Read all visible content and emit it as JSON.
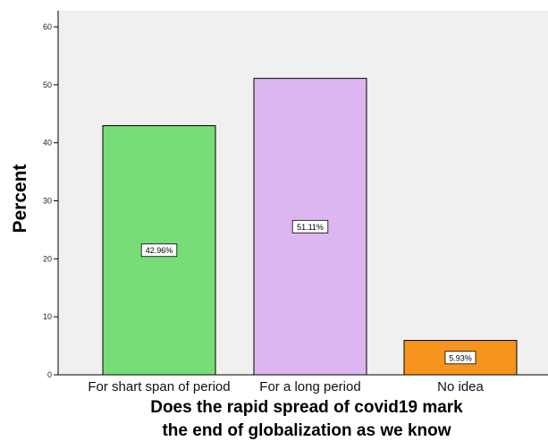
{
  "chart_data": {
    "type": "bar",
    "categories": [
      "For shart span of period",
      "For a long period",
      "No idea"
    ],
    "values": [
      42.96,
      51.11,
      5.93
    ],
    "data_labels": [
      "42.96%",
      "51.11%",
      "5.93%"
    ],
    "colors": [
      "#77dd77",
      "#dcb6f0",
      "#f7941d"
    ],
    "plot_background": "#f0f0f0",
    "ylabel": "Percent",
    "xlabel_lines": [
      "Does the rapid spread of covid19 mark",
      "the end of globalization as we know"
    ],
    "ylim": [
      0,
      60
    ],
    "yticks": [
      0,
      10,
      20,
      30,
      40,
      50,
      60
    ],
    "grid": false
  }
}
